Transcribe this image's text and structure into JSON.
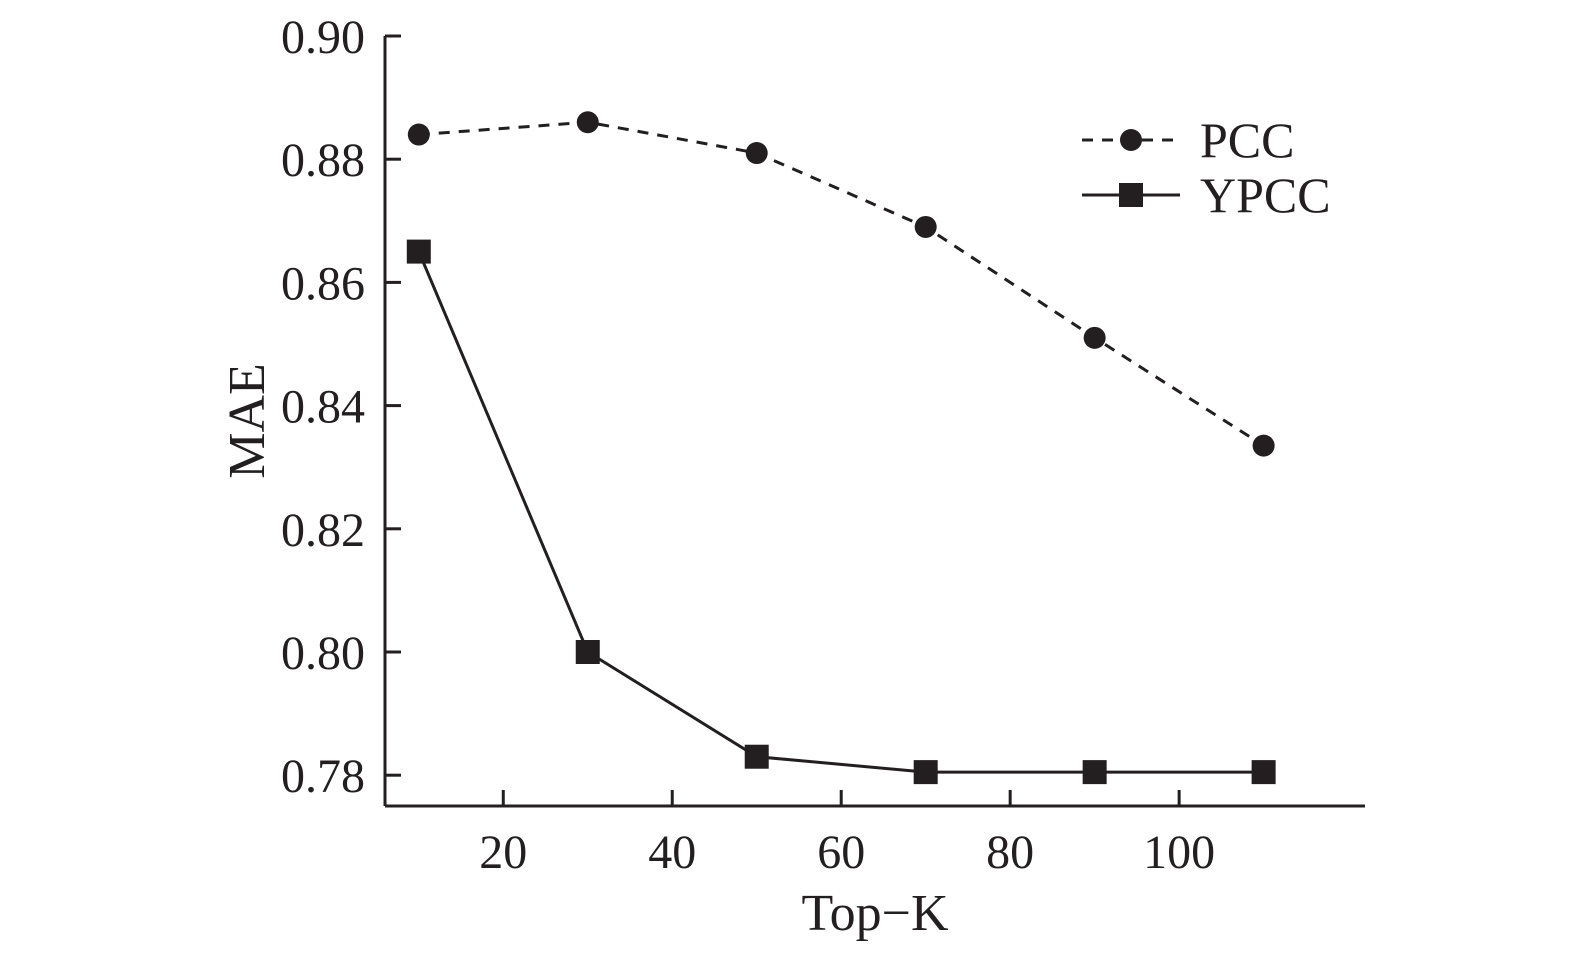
{
  "chart_data": {
    "type": "line",
    "title": "",
    "xlabel": "Top−K",
    "ylabel": "MAE",
    "x": [
      10,
      30,
      50,
      70,
      90,
      110
    ],
    "xlim": [
      6,
      122
    ],
    "ylim": [
      0.775,
      0.9
    ],
    "xticks": [
      20,
      40,
      60,
      80,
      100
    ],
    "xtick_labels": [
      "20",
      "40",
      "60",
      "80",
      "100"
    ],
    "yticks": [
      0.78,
      0.8,
      0.82,
      0.84,
      0.86,
      0.88,
      0.9
    ],
    "ytick_labels": [
      "0.78",
      "0.80",
      "0.82",
      "0.84",
      "0.86",
      "0.88",
      "0.90"
    ],
    "grid": false,
    "legend_position": "top-right",
    "series": [
      {
        "name": "PCC",
        "line_style": "dashed",
        "marker": "circle",
        "color": "#231f20",
        "values": [
          0.884,
          0.886,
          0.881,
          0.869,
          0.851,
          0.8335
        ]
      },
      {
        "name": "YPCC",
        "line_style": "solid",
        "marker": "square",
        "color": "#231f20",
        "values": [
          0.865,
          0.8,
          0.783,
          0.7805,
          0.7805,
          0.7805
        ]
      }
    ]
  }
}
